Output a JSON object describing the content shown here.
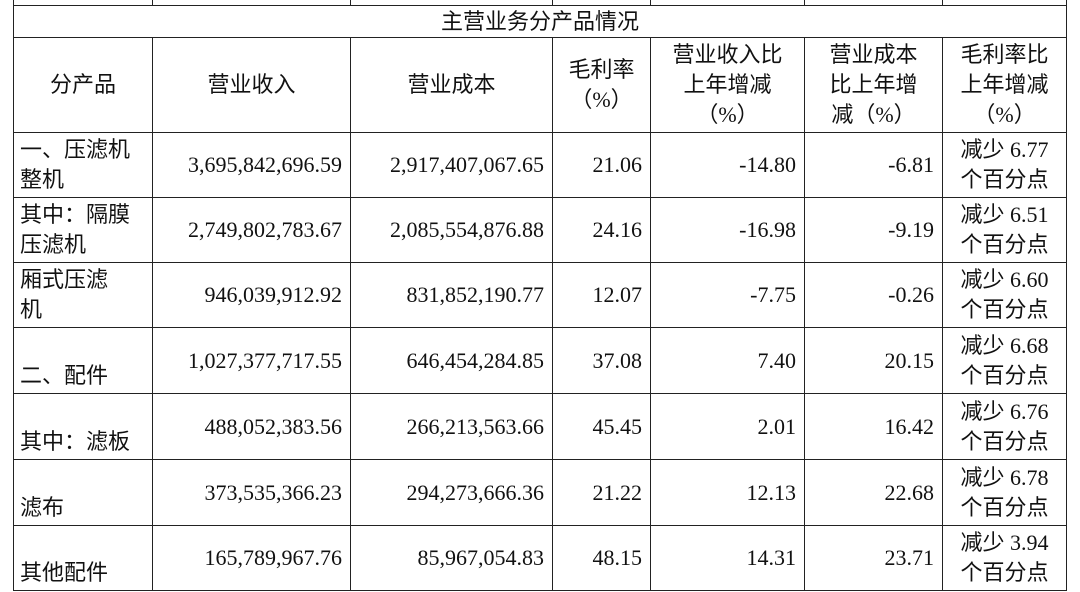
{
  "table": {
    "title": "主营业务分产品情况",
    "header": [
      [
        "分产品"
      ],
      [
        "营业收入"
      ],
      [
        "营业成本"
      ],
      [
        "毛利率",
        "（%）"
      ],
      [
        "营业收入比",
        "上年增减",
        "（%）"
      ],
      [
        "营业成本",
        "比上年增",
        "减（%）"
      ],
      [
        "毛利率比",
        "上年增减",
        "（%）"
      ]
    ],
    "rows": [
      [
        [
          "一、压滤机",
          "整机"
        ],
        [
          "3,695,842,696.59"
        ],
        [
          "2,917,407,067.65"
        ],
        [
          "21.06"
        ],
        [
          "-14.80"
        ],
        [
          "-6.81"
        ],
        [
          "减少 6.77",
          "个百分点"
        ]
      ],
      [
        [
          "其中：隔膜",
          "压滤机"
        ],
        [
          "2,749,802,783.67"
        ],
        [
          "2,085,554,876.88"
        ],
        [
          "24.16"
        ],
        [
          "-16.98"
        ],
        [
          "-9.19"
        ],
        [
          "减少 6.51",
          "个百分点"
        ]
      ],
      [
        [
          "厢式压滤",
          "机"
        ],
        [
          "946,039,912.92"
        ],
        [
          "831,852,190.77"
        ],
        [
          "12.07"
        ],
        [
          "-7.75"
        ],
        [
          "-0.26"
        ],
        [
          "减少 6.60",
          "个百分点"
        ]
      ],
      [
        [
          "二、配件"
        ],
        [
          "1,027,377,717.55"
        ],
        [
          "646,454,284.85"
        ],
        [
          "37.08"
        ],
        [
          "7.40"
        ],
        [
          "20.15"
        ],
        [
          "减少 6.68",
          "个百分点"
        ]
      ],
      [
        [
          "其中：滤板"
        ],
        [
          "488,052,383.56"
        ],
        [
          "266,213,563.66"
        ],
        [
          "45.45"
        ],
        [
          "2.01"
        ],
        [
          "16.42"
        ],
        [
          "减少 6.76",
          "个百分点"
        ]
      ],
      [
        [
          "滤布"
        ],
        [
          "373,535,366.23"
        ],
        [
          "294,273,666.36"
        ],
        [
          "21.22"
        ],
        [
          "12.13"
        ],
        [
          "22.68"
        ],
        [
          "减少 6.78",
          "个百分点"
        ]
      ],
      [
        [
          "其他配件"
        ],
        [
          "165,789,967.76"
        ],
        [
          "85,967,054.83"
        ],
        [
          "48.15"
        ],
        [
          "14.31"
        ],
        [
          "23.71"
        ],
        [
          "减少 3.94",
          "个百分点"
        ]
      ]
    ]
  }
}
